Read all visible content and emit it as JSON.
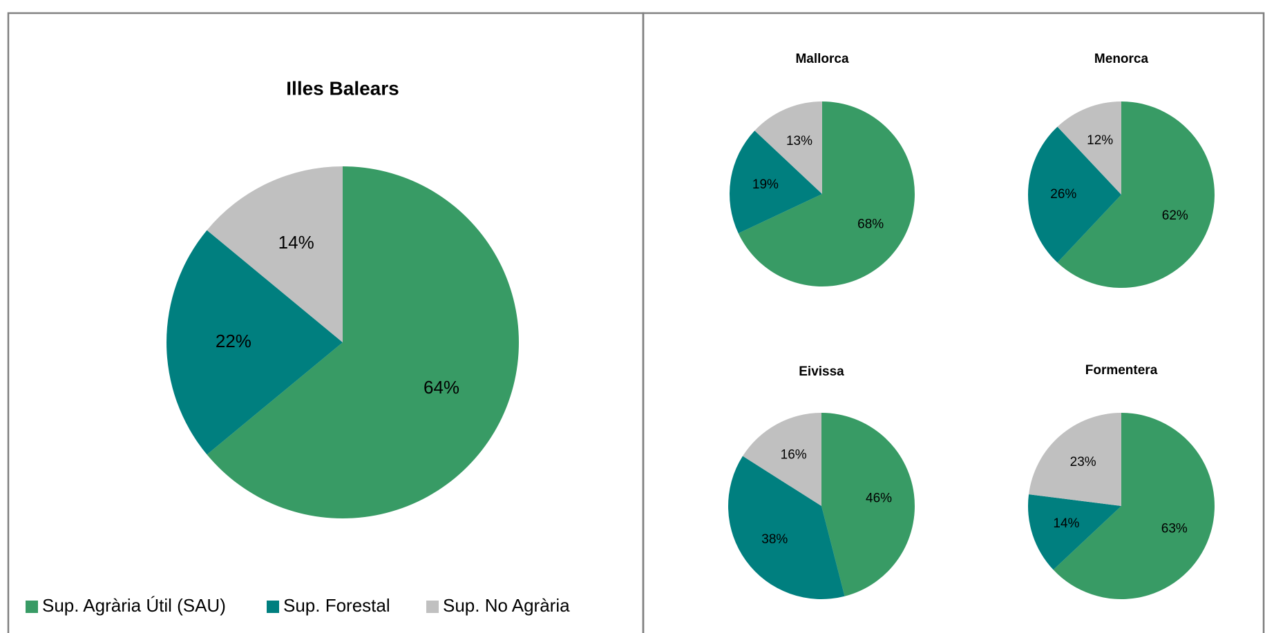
{
  "chart_data": [
    {
      "type": "pie",
      "title": "Illes Balears",
      "categories": [
        "Sup. Agrària Útil (SAU)",
        "Sup. Forestal",
        "Sup. No Agrària"
      ],
      "values": [
        64,
        22,
        14
      ],
      "value_labels": [
        "64%",
        "22%",
        "14%"
      ],
      "colors": [
        "#389b65",
        "#007f7f",
        "#c0c0c0"
      ],
      "legend": "bottom"
    },
    {
      "type": "pie",
      "title": "Mallorca",
      "values": [
        68,
        19,
        13
      ],
      "value_labels": [
        "68%",
        "19%",
        "13%"
      ],
      "colors": [
        "#389b65",
        "#007f7f",
        "#c0c0c0"
      ]
    },
    {
      "type": "pie",
      "title": "Menorca",
      "values": [
        62,
        26,
        12
      ],
      "value_labels": [
        "62%",
        "26%",
        "12%"
      ],
      "colors": [
        "#389b65",
        "#007f7f",
        "#c0c0c0"
      ]
    },
    {
      "type": "pie",
      "title": "Eivissa",
      "values": [
        46,
        38,
        16
      ],
      "value_labels": [
        "46%",
        "38%",
        "16%"
      ],
      "colors": [
        "#389b65",
        "#007f7f",
        "#c0c0c0"
      ]
    },
    {
      "type": "pie",
      "title": "Formentera",
      "values": [
        63,
        14,
        23
      ],
      "value_labels": [
        "63%",
        "14%",
        "23%"
      ],
      "colors": [
        "#389b65",
        "#007f7f",
        "#c0c0c0"
      ]
    }
  ]
}
